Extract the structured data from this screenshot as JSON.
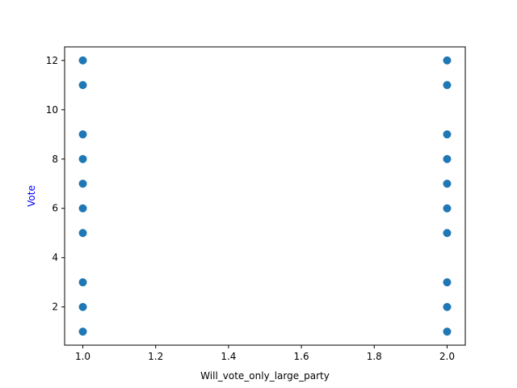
{
  "chart_data": {
    "type": "scatter",
    "title": "",
    "xlabel": "Will_vote_only_large_party",
    "ylabel": "Vote",
    "ylabel_color": "#0000ff",
    "xlim": [
      0.95,
      2.05
    ],
    "ylim": [
      0.45,
      12.55
    ],
    "x_ticks": [
      1.0,
      1.2,
      1.4,
      1.6,
      1.8,
      2.0
    ],
    "x_tick_labels": [
      "1.0",
      "1.2",
      "1.4",
      "1.6",
      "1.8",
      "2.0"
    ],
    "y_ticks": [
      2,
      4,
      6,
      8,
      10,
      12
    ],
    "y_tick_labels": [
      "2",
      "4",
      "6",
      "8",
      "10",
      "12"
    ],
    "grid": false,
    "marker_color": "#1f77b4",
    "series": [
      {
        "points": [
          {
            "x": 1.0,
            "y": 1
          },
          {
            "x": 1.0,
            "y": 2
          },
          {
            "x": 1.0,
            "y": 3
          },
          {
            "x": 1.0,
            "y": 5
          },
          {
            "x": 1.0,
            "y": 6
          },
          {
            "x": 1.0,
            "y": 7
          },
          {
            "x": 1.0,
            "y": 8
          },
          {
            "x": 1.0,
            "y": 9
          },
          {
            "x": 1.0,
            "y": 11
          },
          {
            "x": 1.0,
            "y": 12
          },
          {
            "x": 2.0,
            "y": 1
          },
          {
            "x": 2.0,
            "y": 2
          },
          {
            "x": 2.0,
            "y": 3
          },
          {
            "x": 2.0,
            "y": 5
          },
          {
            "x": 2.0,
            "y": 6
          },
          {
            "x": 2.0,
            "y": 7
          },
          {
            "x": 2.0,
            "y": 8
          },
          {
            "x": 2.0,
            "y": 9
          },
          {
            "x": 2.0,
            "y": 11
          },
          {
            "x": 2.0,
            "y": 12
          }
        ]
      }
    ]
  }
}
